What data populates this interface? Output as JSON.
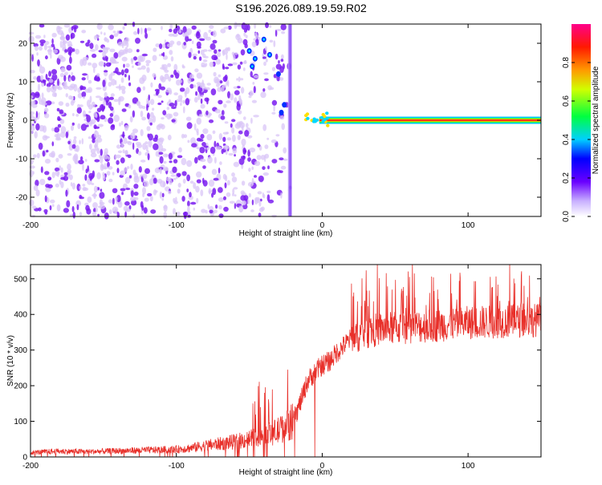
{
  "title": "S196.2026.089.19.59.R02",
  "colors": {
    "axis": "#000000",
    "signal": "#e8302a",
    "spectrum_purple": "#7a1cf0",
    "spectrum_light": "#d9c6f7",
    "background": "#ffffff"
  },
  "chart_data": [
    {
      "type": "heatmap",
      "xlabel": "Height of straight line (km)",
      "ylabel": "Frequency (Hz)",
      "xlim": [
        -200,
        150
      ],
      "ylim": [
        -25,
        25
      ],
      "x_ticks": [
        -200,
        -100,
        0,
        100
      ],
      "x_tick_labels": [
        "-200",
        "-100",
        "0",
        "100"
      ],
      "y_ticks": [
        -20,
        -10,
        0,
        10,
        20
      ],
      "y_tick_labels": [
        "-20",
        "-10",
        "0",
        "10",
        "20"
      ],
      "description_regions": [
        {
          "name": "noise",
          "x_range": [
            -200,
            -22
          ],
          "freq_range": [
            -25,
            25
          ]
        },
        {
          "name": "carrier",
          "x_range": [
            -2,
            150
          ],
          "freq": 0
        }
      ],
      "colorbar": {
        "label": "Normalized spectral amplitude",
        "range": [
          0,
          1
        ],
        "ticks": [
          0.0,
          0.2,
          0.4,
          0.6,
          0.8
        ],
        "tick_labels": [
          "0.0",
          "0.2",
          "0.4",
          "0.6",
          "0.8"
        ]
      }
    },
    {
      "type": "line",
      "xlabel": "Height of straight line (km)",
      "ylabel": "SNR (10 * v/v)",
      "xlim": [
        -200,
        150
      ],
      "ylim": [
        0,
        540
      ],
      "x_ticks": [
        -200,
        -100,
        0,
        100
      ],
      "x_tick_labels": [
        "-200",
        "-100",
        "0",
        "100"
      ],
      "y_ticks": [
        0,
        100,
        200,
        300,
        400,
        500
      ],
      "y_tick_labels": [
        "0",
        "100",
        "200",
        "300",
        "400",
        "500"
      ],
      "series": [
        {
          "name": "SNR",
          "x": [
            -200,
            -180,
            -160,
            -140,
            -120,
            -100,
            -90,
            -80,
            -70,
            -60,
            -50,
            -40,
            -30,
            -20,
            -15,
            -10,
            -5,
            0,
            5,
            10,
            20,
            30,
            40,
            60,
            80,
            100,
            120,
            150
          ],
          "values": [
            12,
            15,
            14,
            16,
            18,
            20,
            24,
            30,
            35,
            40,
            48,
            55,
            70,
            95,
            150,
            210,
            235,
            255,
            265,
            290,
            330,
            345,
            355,
            360,
            365,
            372,
            375,
            380
          ]
        }
      ]
    }
  ]
}
